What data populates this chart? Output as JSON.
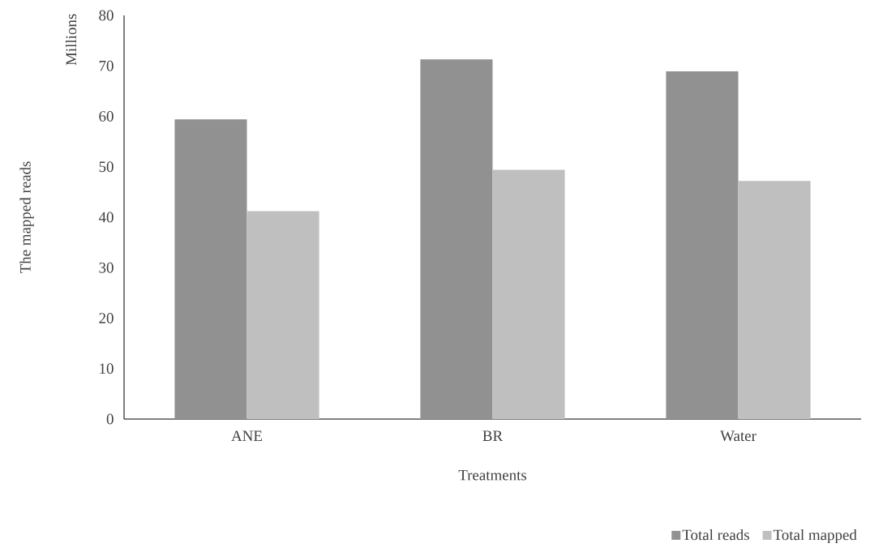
{
  "chart_data": {
    "type": "bar",
    "xlabel": "Treatments",
    "ylabel": "The mapped reads",
    "annotations": [
      "Millions"
    ],
    "categories": [
      "ANE",
      "BR",
      "Water"
    ],
    "series": [
      {
        "name": "Total reads",
        "color": "#919191",
        "values": [
          59.4,
          71.3,
          68.9
        ]
      },
      {
        "name": "Total mapped",
        "color": "#bfbfbf",
        "values": [
          41.2,
          49.4,
          47.2
        ]
      }
    ],
    "ylim": [
      0,
      80
    ],
    "yticks": [
      0,
      10,
      20,
      30,
      40,
      50,
      60,
      70,
      80
    ],
    "legend": "bottom right",
    "grid": false
  }
}
